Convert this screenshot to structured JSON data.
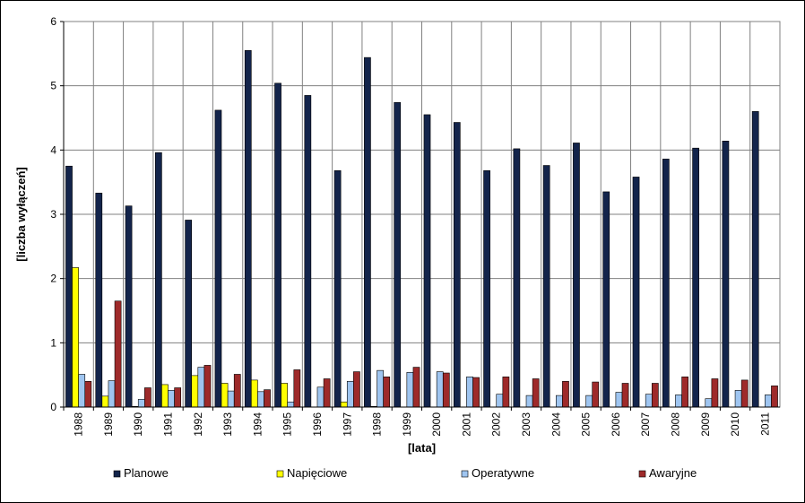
{
  "chart_data": {
    "type": "bar",
    "title": "",
    "xlabel": "[lata]",
    "ylabel": "[liczba wyłączeń]",
    "ylim": [
      0,
      6
    ],
    "yticks": [
      "0",
      "1",
      "2",
      "3",
      "4",
      "5",
      "6"
    ],
    "grid": true,
    "legend_position": "bottom",
    "categories": [
      "1988",
      "1989",
      "1990",
      "1991",
      "1992",
      "1993",
      "1994",
      "1995",
      "1996",
      "1997",
      "1998",
      "1999",
      "2000",
      "2001",
      "2002",
      "2003",
      "2004",
      "2005",
      "2006",
      "2007",
      "2008",
      "2009",
      "2010",
      "2011"
    ],
    "series": [
      {
        "name": "Planowe",
        "color": "#13244b",
        "values": [
          3.75,
          3.33,
          3.13,
          3.96,
          2.91,
          4.62,
          5.55,
          5.04,
          4.85,
          3.68,
          5.44,
          4.74,
          4.55,
          4.43,
          3.68,
          4.02,
          3.76,
          4.11,
          3.35,
          3.58,
          3.86,
          4.03,
          4.14,
          4.6
        ]
      },
      {
        "name": "Napięciowe",
        "color": "#ffff00",
        "values": [
          2.17,
          0.17,
          0.01,
          0.35,
          0.49,
          0.37,
          0.42,
          0.37,
          0.0,
          0.08,
          0.01,
          0.0,
          0.0,
          0.0,
          0.0,
          0.0,
          0.0,
          0.0,
          0.0,
          0.0,
          0.0,
          0.0,
          0.0,
          0.0
        ]
      },
      {
        "name": "Operatywne",
        "color": "#9fc5f0",
        "values": [
          0.51,
          0.41,
          0.12,
          0.26,
          0.62,
          0.25,
          0.24,
          0.08,
          0.31,
          0.4,
          0.57,
          0.54,
          0.55,
          0.47,
          0.2,
          0.18,
          0.18,
          0.18,
          0.23,
          0.2,
          0.19,
          0.13,
          0.26,
          0.19
        ]
      },
      {
        "name": "Awaryjne",
        "color": "#9e2a2a",
        "values": [
          0.4,
          1.65,
          0.3,
          0.3,
          0.65,
          0.51,
          0.27,
          0.58,
          0.44,
          0.55,
          0.47,
          0.62,
          0.53,
          0.46,
          0.47,
          0.44,
          0.4,
          0.39,
          0.37,
          0.37,
          0.47,
          0.44,
          0.42,
          0.33
        ]
      }
    ]
  }
}
